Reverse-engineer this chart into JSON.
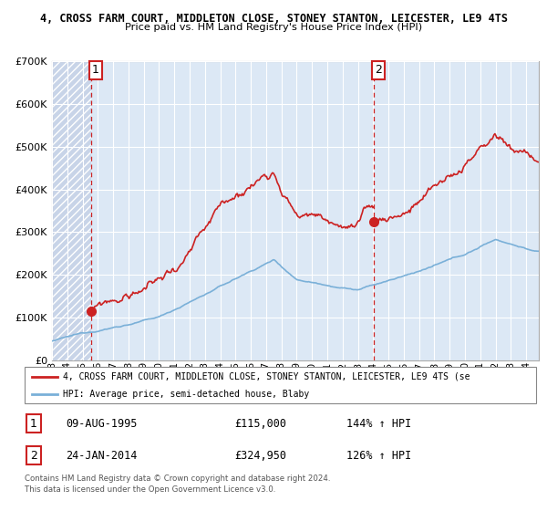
{
  "title_line1": "4, CROSS FARM COURT, MIDDLETON CLOSE, STONEY STANTON, LEICESTER, LE9 4TS",
  "title_line2": "Price paid vs. HM Land Registry's House Price Index (HPI)",
  "hpi_color": "#7ab0d8",
  "price_color": "#cc2222",
  "dashed_color": "#cc2222",
  "bg_hatch_color": "#c8d4e8",
  "bg_light_color": "#dce8f5",
  "grid_color": "#c0cce0",
  "p1_date_f": 1995.58,
  "p1_price": 115000,
  "p2_date_f": 2014.06,
  "p2_price": 324950,
  "xmin": 1993.0,
  "xmax": 2024.83,
  "ymin": 0,
  "ymax": 700000,
  "legend_line1": "4, CROSS FARM COURT, MIDDLETON CLOSE, STONEY STANTON, LEICESTER, LE9 4TS (se",
  "legend_line2": "HPI: Average price, semi-detached house, Blaby"
}
